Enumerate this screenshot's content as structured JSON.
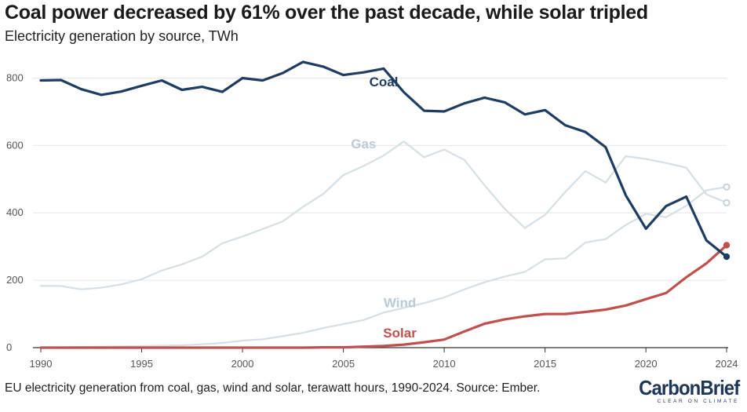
{
  "header": {
    "title": "Coal power decreased by 61% over the past decade, while solar tripled",
    "subtitle": "Electricity generation by source, TWh"
  },
  "footer": {
    "caption": "EU electricity generation from coal, gas, wind and solar, terawatt hours, 1990-2024. Source: Ember.",
    "logo": "CarbonBrief",
    "logo_tagline": "CLEAR ON CLIMATE"
  },
  "colors": {
    "coal": "#1f3d63",
    "gas": "#d4e0e6",
    "wind": "#d4e0e6",
    "solar": "#c0504d",
    "gas_label": "#bccbd3",
    "wind_label": "#b9cbd6",
    "grid": "#e6e6e6",
    "axis": "#333333"
  },
  "chart_data": {
    "type": "line",
    "title": "Coal power decreased by 61% over the past decade, while solar tripled",
    "subtitle": "Electricity generation by source, TWh",
    "xlim": [
      1990,
      2024
    ],
    "ylim": [
      0,
      850
    ],
    "yticks": [
      0,
      200,
      400,
      600,
      800
    ],
    "xticks": [
      1990,
      1995,
      2000,
      2005,
      2010,
      2015,
      2020,
      2024
    ],
    "grid": true,
    "x": [
      1990,
      1991,
      1992,
      1993,
      1994,
      1995,
      1996,
      1997,
      1998,
      1999,
      2000,
      2001,
      2002,
      2003,
      2004,
      2005,
      2006,
      2007,
      2008,
      2009,
      2010,
      2011,
      2012,
      2013,
      2014,
      2015,
      2016,
      2017,
      2018,
      2019,
      2020,
      2021,
      2022,
      2023,
      2024
    ],
    "series": [
      {
        "name": "Coal",
        "key": "coal",
        "values": [
          793,
          794,
          767,
          750,
          760,
          777,
          793,
          765,
          774,
          759,
          800,
          793,
          815,
          848,
          834,
          809,
          817,
          828,
          758,
          703,
          701,
          725,
          742,
          728,
          692,
          705,
          660,
          640,
          595,
          452,
          353,
          420,
          448,
          318,
          270
        ]
      },
      {
        "name": "Gas",
        "key": "gas",
        "values": [
          183,
          183,
          173,
          178,
          188,
          203,
          229,
          247,
          270,
          310,
          330,
          352,
          375,
          418,
          456,
          512,
          539,
          570,
          612,
          565,
          588,
          557,
          482,
          412,
          355,
          394,
          462,
          524,
          490,
          568,
          560,
          548,
          534,
          455,
          430
        ]
      },
      {
        "name": "Wind",
        "key": "wind",
        "values": [
          1,
          1,
          2,
          3,
          4,
          5,
          6,
          7,
          10,
          14,
          21,
          25,
          34,
          44,
          58,
          70,
          82,
          104,
          118,
          132,
          149,
          173,
          194,
          211,
          225,
          262,
          265,
          312,
          322,
          364,
          397,
          387,
          421,
          467,
          477
        ]
      },
      {
        "name": "Solar",
        "key": "solar",
        "values": [
          0,
          0,
          0,
          0,
          0,
          0,
          0,
          0,
          0,
          0,
          0,
          0,
          0,
          0,
          1,
          1,
          3,
          5,
          9,
          16,
          24,
          48,
          71,
          84,
          93,
          100,
          100,
          106,
          113,
          125,
          144,
          162,
          209,
          250,
          304
        ]
      }
    ]
  }
}
